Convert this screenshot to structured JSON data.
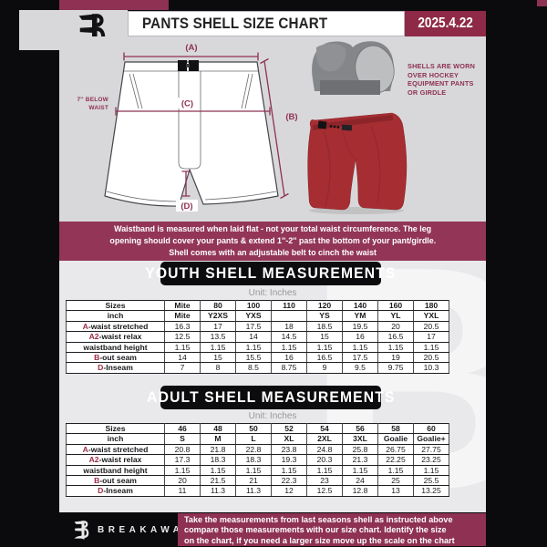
{
  "colors": {
    "maroon": "#8E3152",
    "date_maroon": "#8E2947",
    "top_section_bg": "#D8D8DA",
    "lower_section_bg": "#E9E9EB",
    "black": "#0B0B0D",
    "red_shell": "#A62E33",
    "label_red": "#9E2B45"
  },
  "header": {
    "logo": "B",
    "title": "PANTS SHELL SIZE CHART",
    "date": "2025.4.22"
  },
  "diagram": {
    "label_a": "(A)",
    "label_b": "(B)",
    "label_c": "(C)",
    "label_d": "(D)",
    "below_waist_line1": "7'' BELOW",
    "below_waist_line2": "WAIST",
    "photo_note_lines": [
      "SHELLS ARE WORN",
      "OVER HOCKEY",
      "EQUIPMENT PANTS",
      "OR GIRDLE"
    ]
  },
  "notice": {
    "lines": [
      "Waistband is measured when laid flat - not your total waist circumference. The leg",
      "opening should cover your pants & extend 1''-2'' past the bottom of your pant/girdle.",
      "Shell comes with an adjustable belt to cinch the waist"
    ]
  },
  "youth": {
    "heading": "YOUTH SHELL MEASUREMENTS",
    "unit": "Unit: Inches",
    "table": {
      "rows": [
        {
          "prefix": "",
          "label": "Sizes",
          "header": true,
          "values": [
            "Mite",
            "80",
            "100",
            "110",
            "120",
            "140",
            "160",
            "180"
          ]
        },
        {
          "prefix": "",
          "label": "inch",
          "header": true,
          "values": [
            "Mite",
            "Y2XS",
            "YXS",
            "",
            "YS",
            "YM",
            "YL",
            "YXL"
          ]
        },
        {
          "prefix": "A",
          "label": "-waist stretched",
          "header": false,
          "values": [
            "16.3",
            "17",
            "17.5",
            "18",
            "18.5",
            "19.5",
            "20",
            "20.5"
          ]
        },
        {
          "prefix": "A2",
          "label": "-waist relax",
          "header": false,
          "values": [
            "12.5",
            "13.5",
            "14",
            "14.5",
            "15",
            "16",
            "16.5",
            "17"
          ]
        },
        {
          "prefix": "",
          "label": "waistband height",
          "header": false,
          "values": [
            "1.15",
            "1.15",
            "1.15",
            "1.15",
            "1.15",
            "1.15",
            "1.15",
            "1.15"
          ]
        },
        {
          "prefix": "B",
          "label": "-out seam",
          "header": false,
          "values": [
            "14",
            "15",
            "15.5",
            "16",
            "16.5",
            "17.5",
            "19",
            "20.5"
          ]
        },
        {
          "prefix": "D",
          "label": "-Inseam",
          "header": false,
          "values": [
            "7",
            "8",
            "8.5",
            "8.75",
            "9",
            "9.5",
            "9.75",
            "10.3"
          ]
        }
      ]
    }
  },
  "adult": {
    "heading": "ADULT SHELL MEASUREMENTS",
    "unit": "Unit: Inches",
    "table": {
      "rows": [
        {
          "prefix": "",
          "label": "Sizes",
          "header": true,
          "values": [
            "46",
            "48",
            "50",
            "52",
            "54",
            "56",
            "58",
            "60"
          ]
        },
        {
          "prefix": "",
          "label": "inch",
          "header": true,
          "values": [
            "S",
            "M",
            "L",
            "XL",
            "2XL",
            "3XL",
            "Goalie",
            "Goalie+"
          ]
        },
        {
          "prefix": "A",
          "label": "-waist stretched",
          "header": false,
          "values": [
            "20.8",
            "21.8",
            "22.8",
            "23.8",
            "24.8",
            "25.8",
            "26.75",
            "27.75"
          ]
        },
        {
          "prefix": "A2",
          "label": "-waist relax",
          "header": false,
          "values": [
            "17.3",
            "18.3",
            "18.3",
            "19.3",
            "20.3",
            "21.3",
            "22.25",
            "23.25"
          ]
        },
        {
          "prefix": "",
          "label": "waistband height",
          "header": false,
          "values": [
            "1.15",
            "1.15",
            "1.15",
            "1.15",
            "1.15",
            "1.15",
            "1.15",
            "1.15"
          ]
        },
        {
          "prefix": "B",
          "label": "-out seam",
          "header": false,
          "values": [
            "20",
            "21.5",
            "21",
            "22.3",
            "23",
            "24",
            "25",
            "25.5"
          ]
        },
        {
          "prefix": "D",
          "label": "-Inseam",
          "header": false,
          "values": [
            "11",
            "11.3",
            "11.3",
            "12",
            "12.5",
            "12.8",
            "13",
            "13.25"
          ]
        }
      ]
    }
  },
  "watermark": "B",
  "footer": {
    "logo": "B",
    "brand": "BREAKAWAY",
    "note_lines": [
      "Take the measurements from last seasons shell as instructed above",
      "compare those measurements  with our size chart. Identify the size",
      "on the chart, if you need a larger size move up the scale on the chart"
    ]
  }
}
